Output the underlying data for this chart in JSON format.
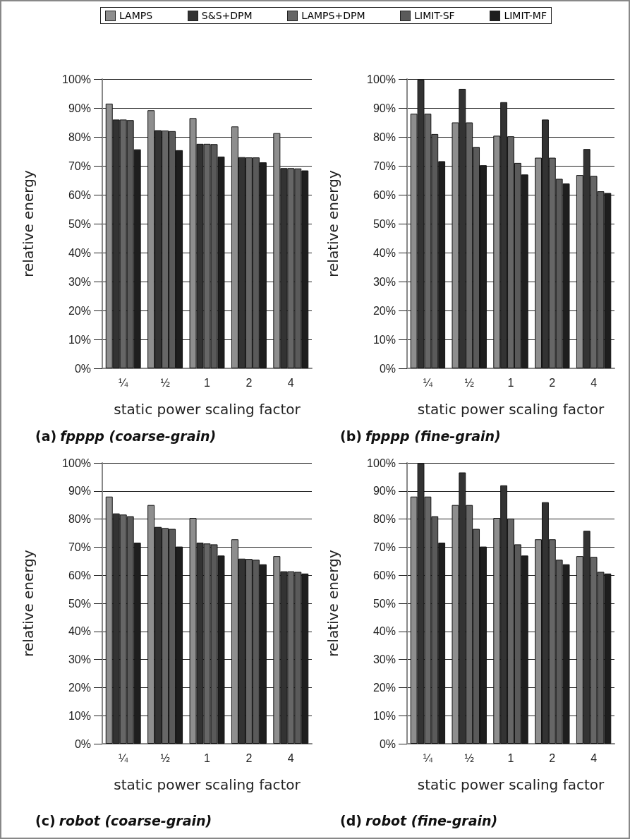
{
  "chart_data": [
    {
      "type": "bar",
      "title": "(a) fpppp (coarse-grain)",
      "xlabel": "static power scaling factor",
      "ylabel": "relative energy",
      "categories": [
        "¼",
        "½",
        "1",
        "2",
        "4"
      ],
      "legend": "top",
      "grid": "y",
      "ylim": [
        0,
        100
      ],
      "yticks": [
        {
          "value": 0,
          "label": "0%"
        },
        {
          "value": 10,
          "label": "10%"
        },
        {
          "value": 20,
          "label": "20%"
        },
        {
          "value": 30,
          "label": "30%"
        },
        {
          "value": 40,
          "label": "40%"
        },
        {
          "value": 50,
          "label": "50%"
        },
        {
          "value": 60,
          "label": "60%"
        },
        {
          "value": 70,
          "label": "70%"
        },
        {
          "value": 80,
          "label": "80%"
        },
        {
          "value": 90,
          "label": "90%"
        },
        {
          "value": 100,
          "label": "100%"
        }
      ],
      "series": [
        {
          "name": "LAMPS",
          "color": "#8e8e8e",
          "values": [
            91.5,
            89.2,
            86.5,
            83.6,
            81.3
          ]
        },
        {
          "name": "S&S+DPM",
          "color": "#333333",
          "values": [
            86,
            82.3,
            77.6,
            73,
            69.2
          ]
        },
        {
          "name": "LAMPS+DPM",
          "color": "#666666",
          "values": [
            86,
            82.2,
            77.6,
            72.9,
            69.2
          ]
        },
        {
          "name": "LIMIT-SF",
          "color": "#5a5a5a",
          "values": [
            85.8,
            82,
            77.5,
            72.9,
            69.1
          ]
        },
        {
          "name": "LIMIT-MF",
          "color": "#1e1e1e",
          "values": [
            75.7,
            75.4,
            73.2,
            71.2,
            68.4
          ]
        }
      ]
    },
    {
      "type": "bar",
      "title": "(b) fpppp (fine-grain)",
      "xlabel": "static power scaling factor",
      "ylabel": "relative energy",
      "categories": [
        "¼",
        "½",
        "1",
        "2",
        "4"
      ],
      "grid": "y",
      "ylim": [
        0,
        100
      ],
      "yticks": [
        {
          "value": 0,
          "label": "0%"
        },
        {
          "value": 10,
          "label": "10%"
        },
        {
          "value": 20,
          "label": "20%"
        },
        {
          "value": 30,
          "label": "30%"
        },
        {
          "value": 40,
          "label": "40%"
        },
        {
          "value": 50,
          "label": "50%"
        },
        {
          "value": 60,
          "label": "60%"
        },
        {
          "value": 70,
          "label": "70%"
        },
        {
          "value": 80,
          "label": "80%"
        },
        {
          "value": 90,
          "label": "90%"
        },
        {
          "value": 100,
          "label": "100%"
        }
      ],
      "series": [
        {
          "color": "#8e8e8e",
          "values": [
            88,
            85,
            80.4,
            72.8,
            66.8
          ]
        },
        {
          "color": "#333333",
          "values": [
            99.8,
            96.6,
            92,
            86,
            75.8
          ]
        },
        {
          "color": "#666666",
          "values": [
            88,
            85,
            80.2,
            72.8,
            66.5
          ]
        },
        {
          "color": "#5a5a5a",
          "values": [
            81,
            76.5,
            71,
            65.5,
            61.2
          ]
        },
        {
          "color": "#1e1e1e",
          "values": [
            71.6,
            70.2,
            67,
            63.9,
            60.6
          ]
        }
      ]
    },
    {
      "type": "bar",
      "title": "(c) robot (coarse-grain)",
      "xlabel": "static power scaling factor",
      "ylabel": "relative energy",
      "categories": [
        "¼",
        "½",
        "1",
        "2",
        "4"
      ],
      "grid": "y",
      "ylim": [
        0,
        100
      ],
      "yticks": [
        {
          "value": 0,
          "label": "0%"
        },
        {
          "value": 10,
          "label": "10%"
        },
        {
          "value": 20,
          "label": "20%"
        },
        {
          "value": 30,
          "label": "30%"
        },
        {
          "value": 40,
          "label": "40%"
        },
        {
          "value": 50,
          "label": "50%"
        },
        {
          "value": 60,
          "label": "60%"
        },
        {
          "value": 70,
          "label": "70%"
        },
        {
          "value": 80,
          "label": "80%"
        },
        {
          "value": 90,
          "label": "90%"
        },
        {
          "value": 100,
          "label": "100%"
        }
      ],
      "series": [
        {
          "color": "#8e8e8e",
          "values": [
            88,
            85,
            80.4,
            72.8,
            66.8
          ]
        },
        {
          "color": "#333333",
          "values": [
            82,
            77.2,
            71.6,
            65.9,
            61.4
          ]
        },
        {
          "color": "#666666",
          "values": [
            81.6,
            76.8,
            71.3,
            65.8,
            61.4
          ]
        },
        {
          "color": "#5a5a5a",
          "values": [
            81,
            76.5,
            71,
            65.5,
            61.2
          ]
        },
        {
          "color": "#1e1e1e",
          "values": [
            71.6,
            70.2,
            67,
            63.9,
            60.6
          ]
        }
      ]
    },
    {
      "type": "bar",
      "title": "(d) robot (fine-grain)",
      "xlabel": "static power scaling factor",
      "ylabel": "relative energy",
      "categories": [
        "¼",
        "½",
        "1",
        "2",
        "4"
      ],
      "grid": "y",
      "ylim": [
        0,
        100
      ],
      "yticks": [
        {
          "value": 0,
          "label": "0%"
        },
        {
          "value": 10,
          "label": "10%"
        },
        {
          "value": 20,
          "label": "20%"
        },
        {
          "value": 30,
          "label": "30%"
        },
        {
          "value": 40,
          "label": "40%"
        },
        {
          "value": 50,
          "label": "50%"
        },
        {
          "value": 60,
          "label": "60%"
        },
        {
          "value": 70,
          "label": "70%"
        },
        {
          "value": 80,
          "label": "80%"
        },
        {
          "value": 90,
          "label": "90%"
        },
        {
          "value": 100,
          "label": "100%"
        }
      ],
      "series": [
        {
          "color": "#8e8e8e",
          "values": [
            88,
            85,
            80.4,
            72.8,
            66.8
          ]
        },
        {
          "color": "#333333",
          "values": [
            99.8,
            96.6,
            92,
            86,
            75.8
          ]
        },
        {
          "color": "#666666",
          "values": [
            88,
            85,
            80.2,
            72.8,
            66.5
          ]
        },
        {
          "color": "#5a5a5a",
          "values": [
            81,
            76.5,
            71,
            65.5,
            61.2
          ]
        },
        {
          "color": "#1e1e1e",
          "values": [
            71.6,
            70.2,
            67,
            63.9,
            60.6
          ]
        }
      ]
    }
  ]
}
